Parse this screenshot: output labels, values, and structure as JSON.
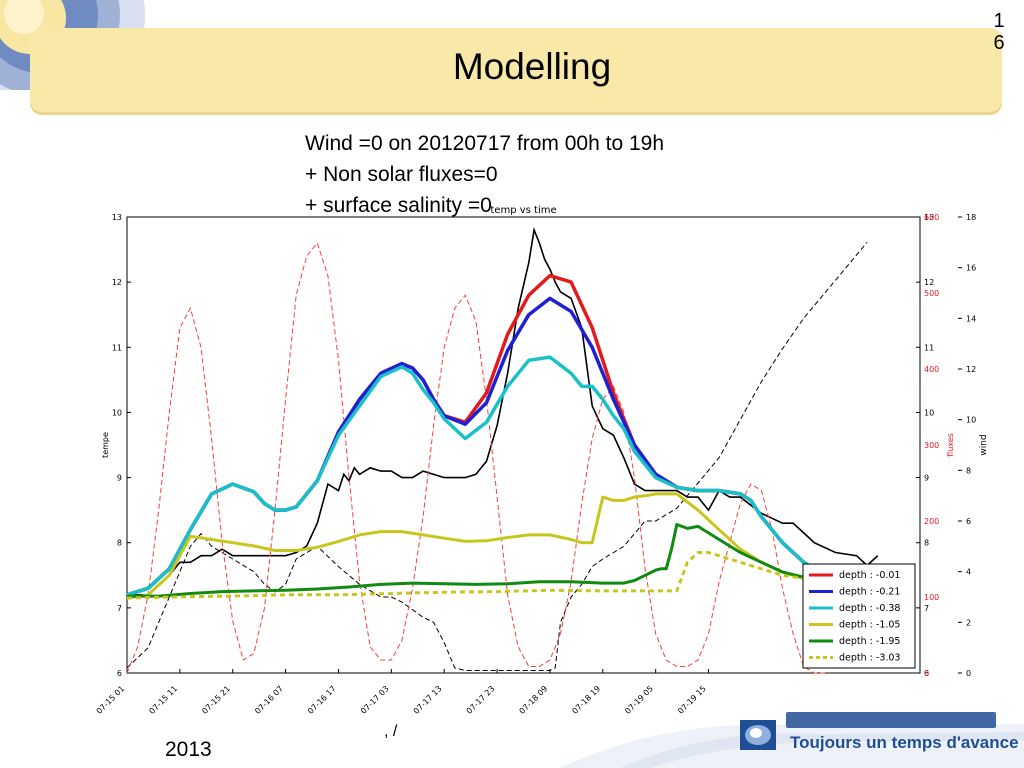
{
  "slide": {
    "title": "Modelling",
    "page_number_top": "1",
    "page_number_bottom": "6",
    "subtitle_lines": [
      "Wind =0 on 20120717 from 00h to 19h",
      "+ Non solar fluxes=0",
      "+ surface salinity =0"
    ],
    "footer_year": "2013",
    "footer_fragment": ", /",
    "brand_tagline": "Toujours un temps d'avance"
  },
  "colors": {
    "title_band": "#f8e9a8",
    "flux_axis": "#e31a1c",
    "brand_blue": "#1e4f94"
  },
  "chart_data": {
    "type": "line",
    "title": "temp vs time",
    "ylabel_left": "tempe",
    "ylabel_right_flux": "fluxes",
    "ylabel_right_wind": "wind",
    "ylim_left": [
      6,
      13
    ],
    "ylim_wind": [
      0,
      18
    ],
    "flux_ticks": [
      "100",
      "200",
      "300",
      "400",
      "500",
      "600"
    ],
    "left_ticks": [
      "6",
      "7",
      "8",
      "9",
      "10",
      "11",
      "12",
      "13"
    ],
    "mirror_ticks": [
      "6",
      "7",
      "8",
      "9",
      "10",
      "11",
      "12",
      "13"
    ],
    "wind_ticks": [
      "0",
      "2",
      "4",
      "6",
      "8",
      "10",
      "12",
      "14",
      "16",
      "18"
    ],
    "x_ticks": [
      "07-15 01",
      "07-15 11",
      "07-15 21",
      "07-16 07",
      "07-16 17",
      "07-17 03",
      "07-17 13",
      "07-17 23",
      "07-18 09",
      "07-18 19",
      "07-19 05",
      "07-19 15"
    ],
    "legend_position": "lower-right",
    "grid": false,
    "series": [
      {
        "name": "depth : -0.01",
        "color": "#e31a1c",
        "style": "solid",
        "width": 3.5,
        "x": [
          0,
          4,
          8,
          12,
          16,
          20,
          24,
          26,
          28,
          30,
          32,
          36,
          40,
          44,
          48,
          52,
          54,
          56,
          58,
          60,
          64,
          68,
          72,
          76,
          80,
          84,
          88,
          90,
          92,
          94,
          96,
          100,
          104,
          108,
          112,
          116,
          118,
          120,
          124,
          128,
          132,
          136,
          140
        ],
        "y": [
          7.2,
          7.3,
          7.6,
          8.2,
          8.75,
          8.9,
          8.78,
          8.6,
          8.5,
          8.5,
          8.55,
          8.95,
          9.7,
          10.2,
          10.6,
          10.75,
          10.68,
          10.5,
          10.2,
          9.95,
          9.85,
          10.3,
          11.2,
          11.8,
          12.1,
          12.0,
          11.3,
          10.8,
          10.3,
          9.9,
          9.5,
          9.05,
          8.85,
          8.8,
          8.8,
          8.75,
          8.65,
          8.4,
          8.0,
          7.7,
          7.5,
          7.4,
          7.35
        ]
      },
      {
        "name": "depth : -0.21",
        "color": "#1f1fd6",
        "style": "solid",
        "width": 3.5,
        "x": [
          0,
          4,
          8,
          12,
          16,
          20,
          24,
          26,
          28,
          30,
          32,
          36,
          40,
          44,
          48,
          52,
          54,
          56,
          58,
          60,
          64,
          68,
          72,
          76,
          80,
          84,
          88,
          90,
          92,
          94,
          96,
          100,
          104,
          108,
          112,
          116,
          118,
          120,
          124,
          128,
          132,
          136,
          140
        ],
        "y": [
          7.2,
          7.3,
          7.6,
          8.2,
          8.75,
          8.9,
          8.78,
          8.6,
          8.5,
          8.5,
          8.55,
          8.95,
          9.7,
          10.2,
          10.6,
          10.75,
          10.68,
          10.5,
          10.2,
          9.95,
          9.82,
          10.15,
          10.95,
          11.5,
          11.75,
          11.55,
          11.0,
          10.6,
          10.2,
          9.85,
          9.5,
          9.05,
          8.85,
          8.8,
          8.8,
          8.75,
          8.65,
          8.4,
          8.0,
          7.7,
          7.5,
          7.4,
          7.35
        ]
      },
      {
        "name": "depth : -0.38",
        "color": "#18c0c8",
        "style": "solid",
        "width": 3.5,
        "x": [
          0,
          4,
          8,
          12,
          16,
          20,
          24,
          26,
          28,
          30,
          32,
          36,
          40,
          44,
          48,
          52,
          54,
          56,
          58,
          60,
          64,
          68,
          72,
          76,
          80,
          84,
          86,
          88,
          90,
          92,
          94,
          96,
          100,
          104,
          108,
          112,
          116,
          118,
          120,
          124,
          128,
          132,
          136,
          140
        ],
        "y": [
          7.2,
          7.3,
          7.6,
          8.2,
          8.75,
          8.9,
          8.78,
          8.6,
          8.5,
          8.5,
          8.55,
          8.95,
          9.65,
          10.1,
          10.55,
          10.7,
          10.6,
          10.35,
          10.15,
          9.9,
          9.6,
          9.85,
          10.4,
          10.8,
          10.85,
          10.6,
          10.4,
          10.4,
          10.2,
          9.95,
          9.75,
          9.4,
          9.0,
          8.85,
          8.8,
          8.8,
          8.75,
          8.65,
          8.4,
          8.0,
          7.7,
          7.5,
          7.4,
          7.35
        ]
      },
      {
        "name": "depth : -1.05",
        "color": "#c8c61c",
        "style": "solid",
        "width": 3,
        "x": [
          0,
          4,
          8,
          12,
          16,
          20,
          24,
          28,
          32,
          36,
          40,
          44,
          48,
          52,
          56,
          60,
          64,
          68,
          72,
          76,
          80,
          84,
          86,
          88,
          90,
          92,
          94,
          96,
          98,
          100,
          104,
          108,
          112,
          116,
          120,
          124,
          128,
          132,
          136,
          140
        ],
        "y": [
          7.15,
          7.2,
          7.5,
          8.1,
          8.05,
          8.0,
          7.95,
          7.88,
          7.88,
          7.93,
          8.02,
          8.12,
          8.17,
          8.17,
          8.12,
          8.07,
          8.02,
          8.03,
          8.08,
          8.12,
          8.12,
          8.05,
          8.0,
          8.0,
          8.7,
          8.65,
          8.65,
          8.7,
          8.72,
          8.75,
          8.75,
          8.5,
          8.2,
          7.9,
          7.7,
          7.55,
          7.45,
          7.4,
          7.35,
          7.3
        ]
      },
      {
        "name": "depth : -1.95",
        "color": "#118a11",
        "style": "solid",
        "width": 3,
        "x": [
          0,
          6,
          12,
          18,
          24,
          30,
          36,
          42,
          48,
          54,
          60,
          66,
          72,
          78,
          84,
          90,
          94,
          96,
          98,
          100,
          101,
          102,
          103,
          104,
          106,
          108,
          112,
          116,
          120,
          124,
          128,
          132,
          136,
          140
        ],
        "y": [
          7.18,
          7.18,
          7.22,
          7.25,
          7.26,
          7.27,
          7.29,
          7.32,
          7.36,
          7.38,
          7.37,
          7.36,
          7.37,
          7.4,
          7.4,
          7.38,
          7.38,
          7.42,
          7.5,
          7.58,
          7.6,
          7.6,
          7.9,
          8.28,
          8.22,
          8.25,
          8.05,
          7.85,
          7.7,
          7.55,
          7.47,
          7.4,
          7.35,
          7.3
        ]
      },
      {
        "name": "depth : -3.03",
        "color": "#c8c61c",
        "style": "dashed",
        "width": 3,
        "x": [
          0,
          10,
          20,
          30,
          40,
          50,
          60,
          70,
          80,
          90,
          100,
          104,
          106,
          108,
          110,
          112,
          116,
          120,
          124,
          128,
          132,
          136,
          140
        ],
        "y": [
          7.15,
          7.17,
          7.18,
          7.2,
          7.2,
          7.22,
          7.24,
          7.25,
          7.27,
          7.26,
          7.26,
          7.26,
          7.7,
          7.85,
          7.85,
          7.8,
          7.7,
          7.6,
          7.5,
          7.45,
          7.4,
          7.35,
          7.3
        ]
      }
    ],
    "extra_lines": [
      {
        "kind": "observed temperature (unlabeled)",
        "axis": "left",
        "color": "#000000",
        "style": "solid",
        "x": [
          0,
          4,
          8,
          10,
          12,
          14,
          16,
          18,
          20,
          30,
          32,
          34,
          36,
          38,
          40,
          41,
          42,
          43,
          44,
          45,
          46,
          48,
          50,
          52,
          54,
          56,
          60,
          64,
          66,
          68,
          70,
          72,
          74,
          76,
          77,
          78,
          79,
          80,
          81,
          82,
          84,
          86,
          88,
          90,
          92,
          94,
          96,
          98,
          100,
          102,
          104,
          106,
          108,
          110,
          112,
          114,
          116,
          120,
          124,
          126,
          128,
          130,
          134,
          138,
          140,
          142
        ],
        "y": [
          7.2,
          7.2,
          7.5,
          7.7,
          7.7,
          7.8,
          7.8,
          7.9,
          7.8,
          7.8,
          7.85,
          7.95,
          8.3,
          8.9,
          8.8,
          9.05,
          8.95,
          9.15,
          9.05,
          9.1,
          9.15,
          9.1,
          9.1,
          9.0,
          9.0,
          9.1,
          9.0,
          9.0,
          9.05,
          9.25,
          9.8,
          10.6,
          11.6,
          12.3,
          12.8,
          12.6,
          12.35,
          12.2,
          12.0,
          11.85,
          11.75,
          11.3,
          10.1,
          9.75,
          9.65,
          9.3,
          8.9,
          8.8,
          8.8,
          8.8,
          8.8,
          8.7,
          8.7,
          8.5,
          8.8,
          8.7,
          8.7,
          8.45,
          8.3,
          8.3,
          8.15,
          8.0,
          7.85,
          7.8,
          7.65,
          7.8
        ]
      },
      {
        "kind": "wind (unlabeled)",
        "axis": "wind",
        "color": "#000000",
        "style": "dashed",
        "x": [
          0,
          4,
          8,
          12,
          14,
          16,
          20,
          24,
          26,
          28,
          30,
          32,
          36,
          40,
          44,
          48,
          50,
          52,
          54,
          56,
          58,
          60,
          62,
          64,
          66,
          68,
          70,
          72,
          74,
          76,
          78,
          80,
          81,
          82,
          84,
          86,
          88,
          90,
          94,
          98,
          100,
          104,
          108,
          112,
          116,
          120,
          124,
          128,
          132,
          136,
          140
        ],
        "y": [
          0.2,
          1,
          3,
          5,
          5.5,
          5,
          4.5,
          4,
          3.5,
          3.2,
          3.5,
          4.5,
          5,
          4.2,
          3.5,
          3.0,
          3.0,
          2.8,
          2.5,
          2.2,
          2.0,
          1.2,
          0.2,
          0.1,
          0.1,
          0.1,
          0.1,
          0.1,
          0.1,
          0.1,
          0.1,
          0.1,
          0.2,
          2,
          3,
          3.5,
          4.2,
          4.5,
          5,
          6,
          6,
          6.5,
          7.5,
          8.5,
          10,
          11.5,
          12.8,
          14,
          15,
          16,
          17
        ]
      },
      {
        "kind": "fluxes (unlabeled)",
        "axis": "left",
        "color": "#ff3b3b",
        "style": "dashed",
        "x": [
          0,
          2,
          4,
          6,
          8,
          10,
          12,
          14,
          16,
          18,
          20,
          22,
          24,
          26,
          28,
          30,
          32,
          34,
          36,
          38,
          40,
          42,
          44,
          46,
          48,
          50,
          52,
          54,
          56,
          58,
          60,
          62,
          64,
          66,
          68,
          70,
          72,
          74,
          76,
          78,
          80,
          82,
          84,
          86,
          88,
          90,
          92,
          94,
          96,
          98,
          100,
          102,
          104,
          106,
          108,
          110,
          112,
          114,
          116,
          118,
          120,
          122,
          124,
          126,
          128,
          130,
          132
        ],
        "y": [
          6.0,
          6.4,
          7.2,
          8.5,
          10.0,
          11.3,
          11.6,
          11.0,
          9.6,
          8.0,
          6.8,
          6.2,
          6.3,
          7.0,
          8.5,
          10.2,
          11.8,
          12.4,
          12.6,
          12.1,
          10.8,
          9.0,
          7.4,
          6.4,
          6.2,
          6.2,
          6.5,
          7.3,
          8.4,
          9.8,
          11.0,
          11.6,
          11.8,
          11.4,
          10.2,
          8.7,
          7.2,
          6.4,
          6.1,
          6.1,
          6.2,
          6.6,
          7.4,
          8.6,
          9.6,
          10.2,
          10.4,
          10.0,
          9.0,
          7.6,
          6.6,
          6.2,
          6.1,
          6.1,
          6.2,
          6.6,
          7.4,
          8.0,
          8.6,
          8.9,
          8.8,
          8.2,
          7.3,
          6.6,
          6.1,
          6.0,
          6.0
        ]
      }
    ]
  }
}
